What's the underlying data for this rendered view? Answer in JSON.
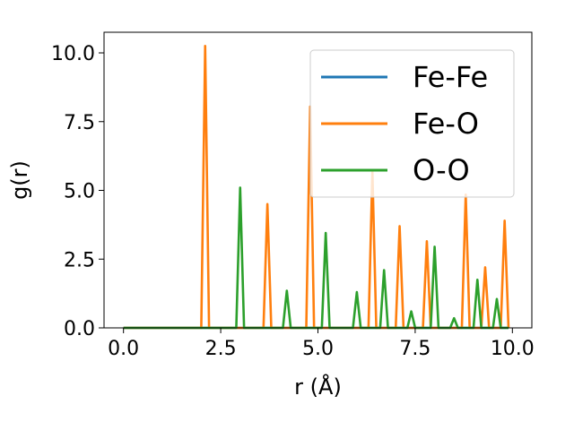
{
  "chart_data": {
    "type": "line",
    "xlabel": "r (Å)",
    "ylabel": "g(r)",
    "xlim": [
      -0.5,
      10.5
    ],
    "ylim": [
      0,
      10.75
    ],
    "x_ticks": [
      0.0,
      2.5,
      5.0,
      7.5,
      10.0
    ],
    "y_ticks": [
      0.0,
      2.5,
      5.0,
      7.5,
      10.0
    ],
    "x_tick_labels": [
      "0.0",
      "2.5",
      "5.0",
      "7.5",
      "10.0"
    ],
    "y_tick_labels": [
      "0.0",
      "2.5",
      "5.0",
      "7.5",
      "10.0"
    ],
    "grid": false,
    "legend_position": "top-right",
    "series": [
      {
        "name": "Fe-Fe",
        "color": "#1f77b4",
        "peaks": []
      },
      {
        "name": "Fe-O",
        "color": "#ff7f0e",
        "peaks": [
          [
            2.1,
            10.25
          ],
          [
            3.7,
            4.5
          ],
          [
            4.8,
            8.05
          ],
          [
            6.4,
            5.7
          ],
          [
            7.1,
            3.7
          ],
          [
            7.75,
            3.15
          ],
          [
            8.8,
            4.85
          ],
          [
            9.3,
            2.2
          ],
          [
            9.8,
            3.9
          ]
        ]
      },
      {
        "name": "O-O",
        "color": "#2ca02c",
        "peaks": [
          [
            3.0,
            5.1
          ],
          [
            4.2,
            1.35
          ],
          [
            5.2,
            3.45
          ],
          [
            6.0,
            1.3
          ],
          [
            6.7,
            2.1
          ],
          [
            7.4,
            0.6
          ],
          [
            8.0,
            2.95
          ],
          [
            8.5,
            0.35
          ],
          [
            9.1,
            1.75
          ],
          [
            9.6,
            1.05
          ]
        ]
      }
    ]
  }
}
